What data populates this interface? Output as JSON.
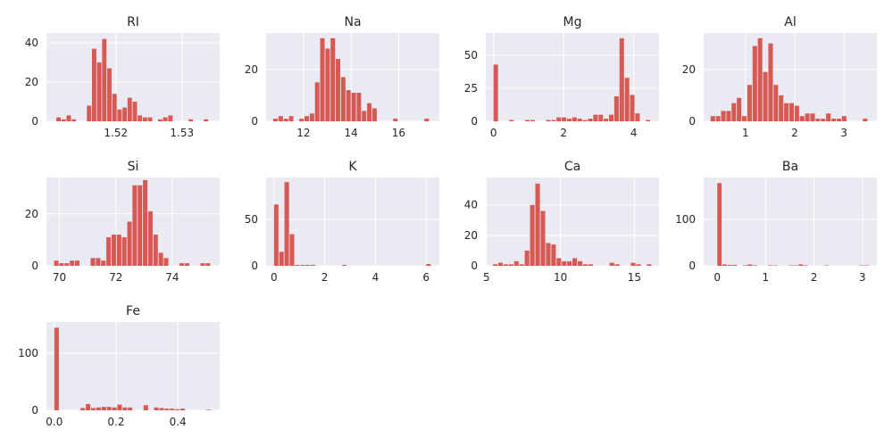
{
  "chart_data": [
    {
      "type": "bar",
      "title": "RI",
      "xlim": [
        1.5095,
        1.5357
      ],
      "ylim": [
        0,
        45
      ],
      "xticks": [
        1.52,
        1.53
      ],
      "xtick_labels": [
        "1.52",
        "1.53"
      ],
      "yticks": [
        0,
        20,
        40
      ],
      "ytick_labels": [
        "0",
        "20",
        "40"
      ],
      "bin_start": 1.511,
      "bin_width": 0.000769,
      "values": [
        2,
        1,
        3,
        1,
        0,
        0,
        8,
        37,
        30,
        42,
        27,
        14,
        6,
        7,
        12,
        10,
        3,
        2,
        2,
        0,
        1,
        2,
        3,
        0,
        0,
        0,
        1,
        0,
        0,
        1
      ]
    },
    {
      "type": "bar",
      "title": "Na",
      "xlim": [
        10.43,
        17.71
      ],
      "ylim": [
        0,
        34
      ],
      "xticks": [
        12,
        14,
        16
      ],
      "xtick_labels": [
        "12",
        "14",
        "16"
      ],
      "yticks": [
        0,
        20
      ],
      "ytick_labels": [
        "0",
        "20"
      ],
      "bin_start": 10.73,
      "bin_width": 0.219,
      "values": [
        1,
        2,
        1,
        2,
        0,
        1,
        2,
        3,
        15,
        32,
        28,
        32,
        24,
        17,
        12,
        11,
        11,
        4,
        7,
        5,
        0,
        0,
        0,
        1,
        0,
        0,
        0,
        0,
        0,
        1
      ]
    },
    {
      "type": "bar",
      "title": "Mg",
      "xlim": [
        -0.22,
        4.72
      ],
      "ylim": [
        0,
        67
      ],
      "xticks": [
        0,
        2,
        4
      ],
      "xtick_labels": [
        "0",
        "2",
        "4"
      ],
      "yticks": [
        0,
        25,
        50
      ],
      "ytick_labels": [
        "0",
        "25",
        "50"
      ],
      "bin_start": 0.0,
      "bin_width": 0.1497,
      "values": [
        43,
        0,
        0,
        1,
        0,
        0,
        1,
        1,
        0,
        0,
        1,
        1,
        3,
        3,
        2,
        3,
        2,
        1,
        2,
        5,
        5,
        2,
        5,
        19,
        63,
        33,
        20,
        6,
        0,
        1
      ]
    },
    {
      "type": "bar",
      "title": "Al",
      "xlim": [
        0.15,
        3.67
      ],
      "ylim": [
        0,
        34
      ],
      "xticks": [
        1,
        2,
        3
      ],
      "xtick_labels": [
        "1",
        "2",
        "3"
      ],
      "yticks": [
        0,
        20
      ],
      "ytick_labels": [
        "0",
        "20"
      ],
      "bin_start": 0.29,
      "bin_width": 0.1067,
      "values": [
        2,
        2,
        4,
        4,
        7,
        9,
        2,
        14,
        29,
        32,
        19,
        30,
        14,
        10,
        7,
        7,
        6,
        2,
        3,
        3,
        1,
        1,
        3,
        1,
        1,
        2,
        0,
        0,
        0,
        1
      ]
    },
    {
      "type": "bar",
      "title": "Si",
      "xlim": [
        69.54,
        75.68
      ],
      "ylim": [
        0,
        34
      ],
      "xticks": [
        70,
        72,
        74
      ],
      "xtick_labels": [
        "70",
        "72",
        "74"
      ],
      "yticks": [
        0,
        20
      ],
      "ytick_labels": [
        "0",
        "20"
      ],
      "bin_start": 69.81,
      "bin_width": 0.1853,
      "values": [
        2,
        1,
        1,
        2,
        2,
        0,
        0,
        3,
        3,
        2,
        11,
        12,
        12,
        11,
        17,
        31,
        31,
        33,
        21,
        12,
        5,
        3,
        0,
        0,
        1,
        1,
        0,
        0,
        1,
        1
      ]
    },
    {
      "type": "bar",
      "title": "K",
      "xlim": [
        -0.31,
        6.52
      ],
      "ylim": [
        0,
        95
      ],
      "xticks": [
        0,
        2,
        4,
        6
      ],
      "xtick_labels": [
        "0",
        "2",
        "4",
        "6"
      ],
      "yticks": [
        0,
        50
      ],
      "ytick_labels": [
        "0",
        "50"
      ],
      "bin_start": 0.0,
      "bin_width": 0.207,
      "values": [
        66,
        15,
        90,
        34,
        1,
        1,
        1,
        1,
        0,
        0,
        0,
        0,
        0,
        1,
        0,
        0,
        0,
        0,
        0,
        0,
        0,
        0,
        0,
        0,
        0,
        0,
        0,
        0,
        0,
        2
      ]
    },
    {
      "type": "bar",
      "title": "Ca",
      "xlim": [
        4.95,
        16.67
      ],
      "ylim": [
        0,
        58
      ],
      "xticks": [
        5,
        10,
        15
      ],
      "xtick_labels": [
        "5",
        "10",
        "15"
      ],
      "yticks": [
        0,
        20,
        40
      ],
      "ytick_labels": [
        "0",
        "20",
        "40"
      ],
      "bin_start": 5.43,
      "bin_width": 0.359,
      "values": [
        1,
        2,
        1,
        1,
        3,
        1,
        10,
        40,
        54,
        36,
        15,
        14,
        5,
        3,
        3,
        5,
        3,
        1,
        1,
        0,
        0,
        0,
        2,
        1,
        0,
        0,
        2,
        1,
        0,
        1
      ]
    },
    {
      "type": "bar",
      "title": "Ba",
      "xlim": [
        -0.28,
        3.3
      ],
      "ylim": [
        0,
        190
      ],
      "xticks": [
        0,
        1,
        2,
        3
      ],
      "xtick_labels": [
        "0",
        "1",
        "2",
        "3"
      ],
      "yticks": [
        0,
        100
      ],
      "ytick_labels": [
        "0",
        "100"
      ],
      "bin_start": 0.0,
      "bin_width": 0.105,
      "values": [
        178,
        3,
        2,
        2,
        0,
        1,
        3,
        1,
        0,
        0,
        1,
        1,
        0,
        0,
        1,
        1,
        3,
        1,
        0,
        0,
        0,
        1,
        0,
        0,
        0,
        0,
        0,
        0,
        1,
        1
      ]
    },
    {
      "type": "bar",
      "title": "Fe",
      "xlim": [
        -0.0255,
        0.5355
      ],
      "ylim": [
        0,
        155
      ],
      "xticks": [
        0.0,
        0.2,
        0.4
      ],
      "xtick_labels": [
        "0.0",
        "0.2",
        "0.4"
      ],
      "yticks": [
        0,
        100
      ],
      "ytick_labels": [
        "0",
        "100"
      ],
      "bin_start": 0.0,
      "bin_width": 0.017,
      "values": [
        145,
        0,
        0,
        0,
        0,
        4,
        11,
        4,
        5,
        6,
        6,
        5,
        10,
        5,
        5,
        0,
        0,
        9,
        0,
        5,
        4,
        3,
        3,
        2,
        3,
        0,
        0,
        0,
        0,
        1
      ]
    }
  ]
}
